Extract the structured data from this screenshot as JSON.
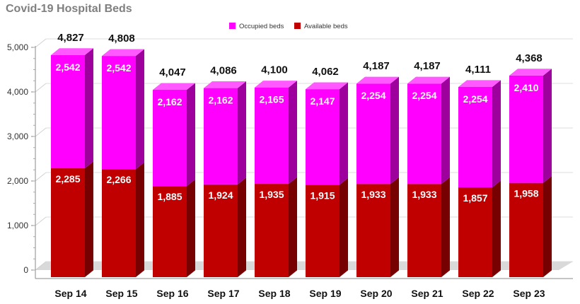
{
  "chart_data": {
    "type": "bar",
    "stacked": true,
    "title": "Covid-19 Hospital Beds",
    "categories": [
      "Sep 14",
      "Sep 15",
      "Sep 16",
      "Sep 17",
      "Sep 18",
      "Sep 19",
      "Sep 20",
      "Sep 21",
      "Sep 22",
      "Sep 23"
    ],
    "series": [
      {
        "name": "Available beds",
        "color": "#c00000",
        "values": [
          2285,
          2266,
          1885,
          1924,
          1935,
          1915,
          1933,
          1933,
          1857,
          1958
        ]
      },
      {
        "name": "Occupied beds",
        "color": "#ff00ff",
        "values": [
          2542,
          2542,
          2162,
          2162,
          2165,
          2147,
          2254,
          2254,
          2254,
          2410
        ]
      }
    ],
    "totals": [
      4827,
      4808,
      4047,
      4086,
      4100,
      4062,
      4187,
      4187,
      4111,
      4368
    ],
    "legend_order": [
      "Occupied beds",
      "Available beds"
    ],
    "legend_position": "top-center",
    "ylim": [
      0,
      5000
    ],
    "yticks": [
      0,
      1000,
      2000,
      3000,
      4000,
      5000
    ],
    "ytick_labels": [
      "0",
      "1,000",
      "2,000",
      "3,000",
      "4,000",
      "5,000"
    ],
    "grid": true,
    "style": "3d"
  }
}
